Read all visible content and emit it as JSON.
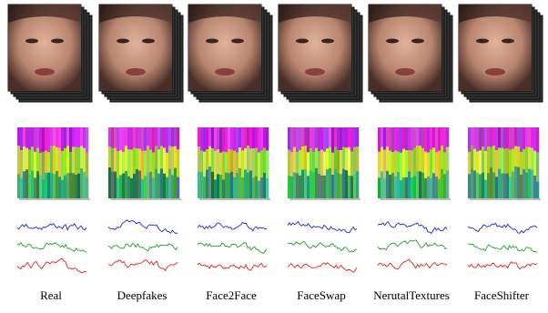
{
  "columns": [
    {
      "label": "Real"
    },
    {
      "label": "Deepfakes"
    },
    {
      "label": "Face2Face"
    },
    {
      "label": "FaceSwap"
    },
    {
      "label": "NerutalTextures"
    },
    {
      "label": "FaceShifter"
    }
  ]
}
